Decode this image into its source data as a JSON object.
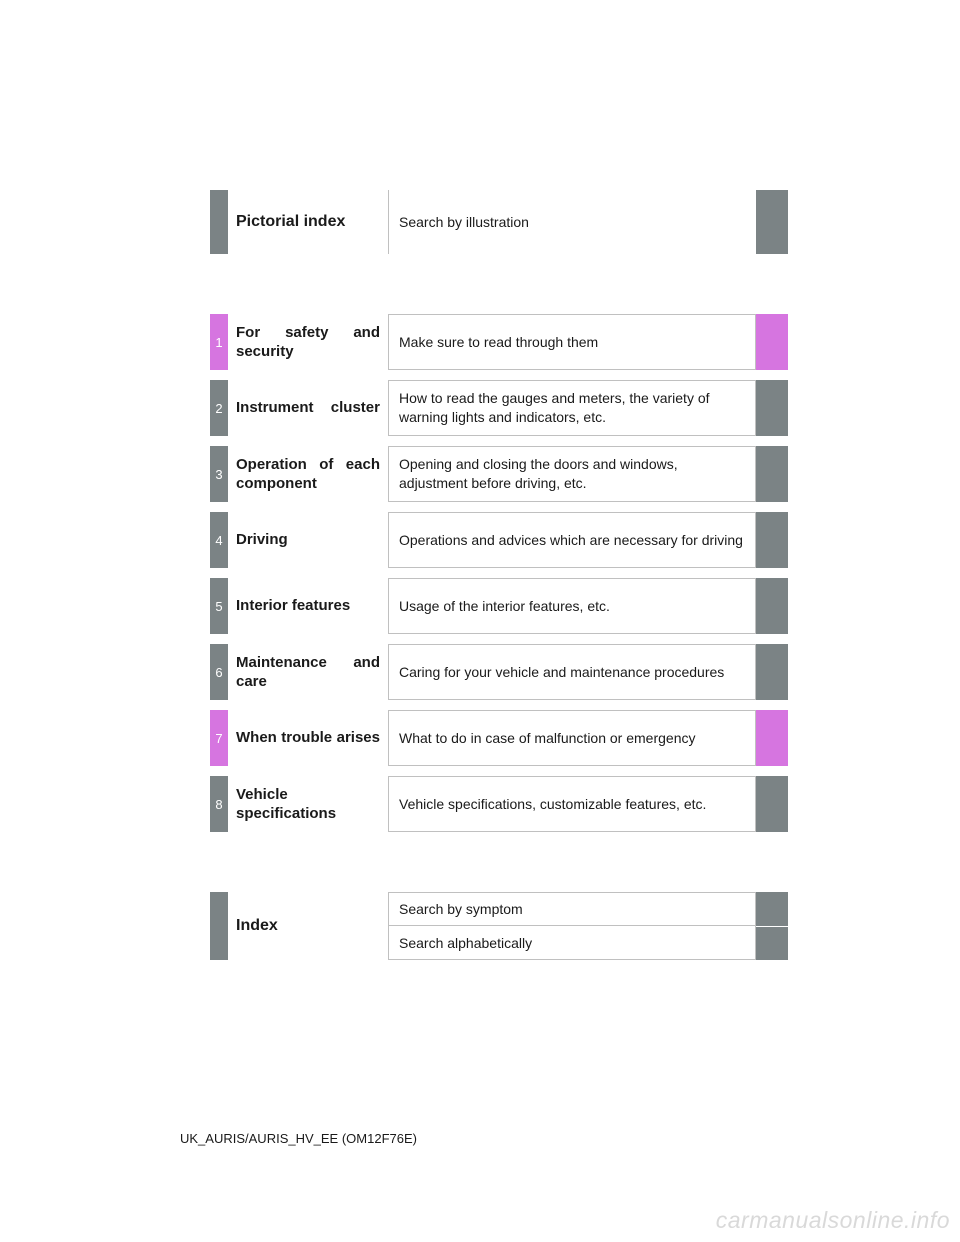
{
  "colors": {
    "gray": "#7b8385",
    "pink": "#d675e0",
    "border": "#c0c0c0",
    "text": "#1a1a1a",
    "watermark": "#d9d9d9",
    "bg": "#ffffff"
  },
  "pictorial": {
    "title": "Pictorial index",
    "desc": "Search by illustration"
  },
  "sections": [
    {
      "num": "1",
      "title": "For safety and security",
      "desc": "Make sure to read through them",
      "color": "pink",
      "justify": true
    },
    {
      "num": "2",
      "title": "Instrument cluster",
      "desc": "How to read the gauges and meters, the variety of warning lights and indicators, etc.",
      "color": "gray",
      "justify": true,
      "hyphenTitle": "Instrument clus-\nter"
    },
    {
      "num": "3",
      "title": "Operation of each component",
      "desc": "Opening and closing the doors and windows, adjustment before driving, etc.",
      "color": "gray",
      "justify": true,
      "hyphenTitle": "Operation of\neach component"
    },
    {
      "num": "4",
      "title": "Driving",
      "desc": "Operations and advices which are necessary for driving",
      "color": "gray",
      "justify": false
    },
    {
      "num": "5",
      "title": "Interior features",
      "desc": "Usage of the interior features, etc.",
      "color": "gray",
      "justify": false
    },
    {
      "num": "6",
      "title": "Maintenance and care",
      "desc": "Caring for your vehicle and maintenance procedures",
      "color": "gray",
      "justify": true
    },
    {
      "num": "7",
      "title": "When trouble arises",
      "desc": "What to do in case of malfunction or emergency",
      "color": "pink",
      "justify": true,
      "hyphenTitle": "When trouble\narises"
    },
    {
      "num": "8",
      "title": "Vehicle specifications",
      "desc": "Vehicle specifications, customizable features, etc.",
      "color": "gray",
      "justify": true,
      "hyphenTitle": "Vehicle specifi-\ncations"
    }
  ],
  "index": {
    "title": "Index",
    "items": [
      "Search by symptom",
      "Search alphabetically"
    ]
  },
  "footer": "UK_AURIS/AURIS_HV_EE (OM12F76E)",
  "watermark": "carmanualsonline.info"
}
